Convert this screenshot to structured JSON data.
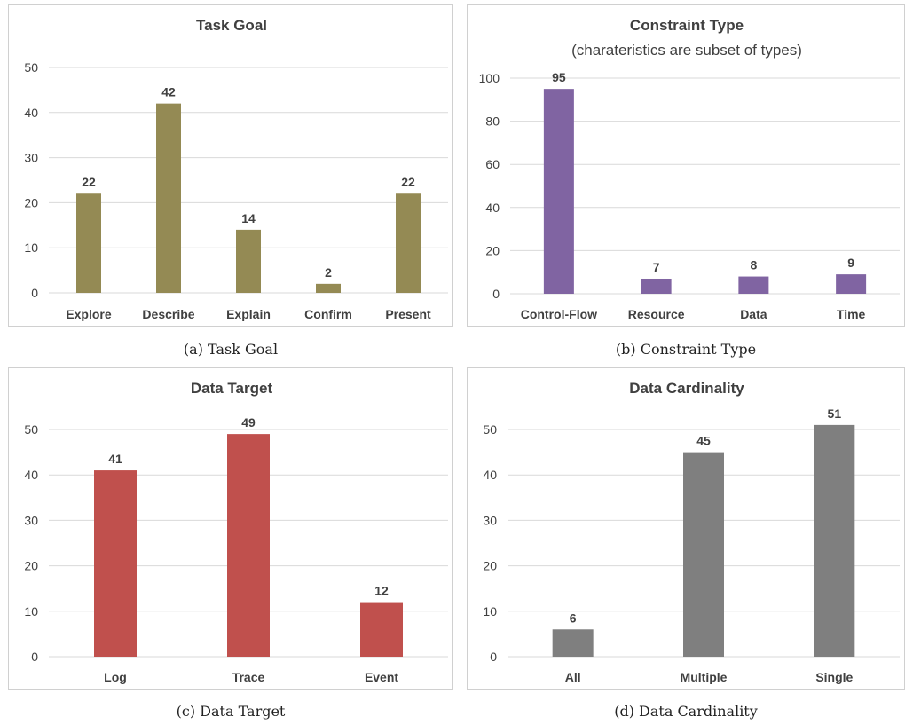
{
  "chart_data": [
    {
      "type": "bar",
      "title": "Task Goal",
      "subtitle": "",
      "categories": [
        "Explore",
        "Describe",
        "Explain",
        "Confirm",
        "Present"
      ],
      "values": [
        22,
        42,
        14,
        2,
        22
      ],
      "ylim": [
        0,
        50
      ],
      "yticks": [
        0,
        10,
        20,
        30,
        40,
        50
      ],
      "color": "#948A54",
      "grid": true,
      "caption": "(a) Task Goal"
    },
    {
      "type": "bar",
      "title": "Constraint Type",
      "subtitle": "(charateristics are subset of types)",
      "categories": [
        "Control-Flow",
        "Resource",
        "Data",
        "Time"
      ],
      "values": [
        95,
        7,
        8,
        9
      ],
      "ylim": [
        0,
        100
      ],
      "yticks": [
        0,
        20,
        40,
        60,
        80,
        100
      ],
      "color": "#8064A2",
      "grid": true,
      "caption": "(b) Constraint Type"
    },
    {
      "type": "bar",
      "title": "Data Target",
      "subtitle": "",
      "categories": [
        "Log",
        "Trace",
        "Event"
      ],
      "values": [
        41,
        49,
        12
      ],
      "ylim": [
        0,
        50
      ],
      "yticks": [
        0,
        10,
        20,
        30,
        40,
        50
      ],
      "color": "#C0504D",
      "grid": true,
      "caption": "(c) Data Target"
    },
    {
      "type": "bar",
      "title": "Data Cardinality",
      "subtitle": "",
      "categories": [
        "All",
        "Multiple",
        "Single"
      ],
      "values": [
        6,
        45,
        51
      ],
      "ylim": [
        0,
        50
      ],
      "yticks": [
        0,
        10,
        20,
        30,
        40,
        50
      ],
      "color": "#7F7F7F",
      "grid": true,
      "caption": "(d) Data Cardinality"
    }
  ]
}
